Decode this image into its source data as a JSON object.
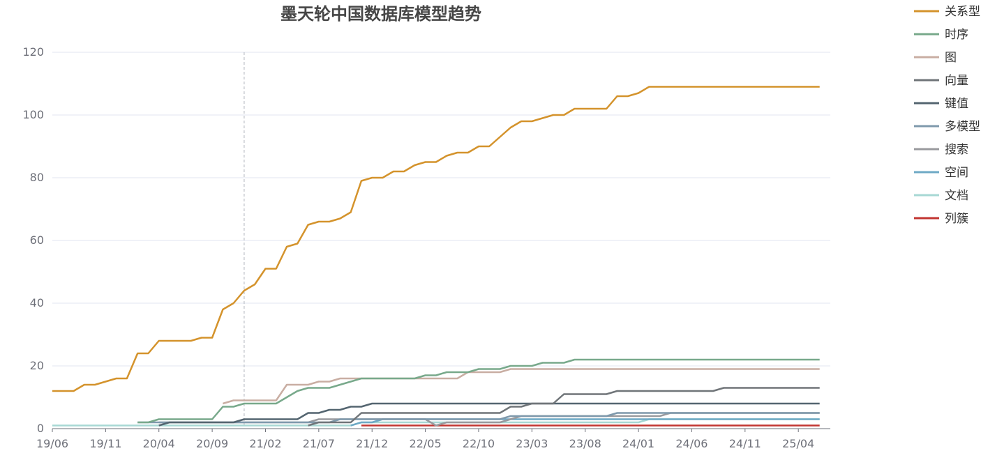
{
  "chart_data": {
    "type": "line",
    "title": "墨天轮中国数据库模型趋势",
    "xlabel": "",
    "ylabel": "",
    "ylim": [
      0,
      120
    ],
    "yticks": [
      0,
      20,
      40,
      60,
      80,
      100,
      120
    ],
    "x_start": "19/06",
    "x_end": "25/07",
    "x_tick_labels": [
      "19/06",
      "19/11",
      "20/04",
      "20/09",
      "21/02",
      "21/07",
      "21/12",
      "22/05",
      "22/10",
      "23/03",
      "23/08",
      "24/01",
      "24/06",
      "24/11",
      "25/04"
    ],
    "cursor_x": "20/12",
    "grid": true,
    "legend_position": "top-right",
    "series": [
      {
        "name": "关系型",
        "color": "#d4932c",
        "points": [
          [
            "19/06",
            12
          ],
          [
            "19/08",
            12
          ],
          [
            "19/09",
            14
          ],
          [
            "19/10",
            14
          ],
          [
            "19/12",
            16
          ],
          [
            "20/01",
            16
          ],
          [
            "20/02",
            24
          ],
          [
            "20/03",
            24
          ],
          [
            "20/04",
            28
          ],
          [
            "20/07",
            28
          ],
          [
            "20/08",
            29
          ],
          [
            "20/09",
            29
          ],
          [
            "20/10",
            38
          ],
          [
            "20/11",
            40
          ],
          [
            "20/12",
            44
          ],
          [
            "21/01",
            46
          ],
          [
            "21/02",
            51
          ],
          [
            "21/03",
            51
          ],
          [
            "21/04",
            58
          ],
          [
            "21/05",
            59
          ],
          [
            "21/06",
            65
          ],
          [
            "21/07",
            66
          ],
          [
            "21/08",
            66
          ],
          [
            "21/09",
            67
          ],
          [
            "21/10",
            69
          ],
          [
            "21/11",
            79
          ],
          [
            "21/12",
            80
          ],
          [
            "22/01",
            80
          ],
          [
            "22/02",
            82
          ],
          [
            "22/03",
            82
          ],
          [
            "22/04",
            84
          ],
          [
            "22/05",
            85
          ],
          [
            "22/06",
            85
          ],
          [
            "22/07",
            87
          ],
          [
            "22/08",
            88
          ],
          [
            "22/09",
            88
          ],
          [
            "22/10",
            90
          ],
          [
            "22/11",
            90
          ],
          [
            "22/12",
            93
          ],
          [
            "23/01",
            96
          ],
          [
            "23/02",
            98
          ],
          [
            "23/03",
            98
          ],
          [
            "23/04",
            99
          ],
          [
            "23/05",
            100
          ],
          [
            "23/06",
            100
          ],
          [
            "23/07",
            102
          ],
          [
            "23/10",
            102
          ],
          [
            "23/11",
            106
          ],
          [
            "23/12",
            106
          ],
          [
            "24/01",
            107
          ],
          [
            "24/02",
            109
          ],
          [
            "25/06",
            109
          ]
        ]
      },
      {
        "name": "时序",
        "color": "#78a98b",
        "points": [
          [
            "20/02",
            2
          ],
          [
            "20/03",
            2
          ],
          [
            "20/04",
            3
          ],
          [
            "20/09",
            3
          ],
          [
            "20/10",
            7
          ],
          [
            "20/11",
            7
          ],
          [
            "20/12",
            8
          ],
          [
            "21/03",
            8
          ],
          [
            "21/04",
            10
          ],
          [
            "21/05",
            12
          ],
          [
            "21/06",
            13
          ],
          [
            "21/08",
            13
          ],
          [
            "21/09",
            14
          ],
          [
            "21/10",
            15
          ],
          [
            "21/11",
            16
          ],
          [
            "22/04",
            16
          ],
          [
            "22/05",
            17
          ],
          [
            "22/06",
            17
          ],
          [
            "22/07",
            18
          ],
          [
            "22/09",
            18
          ],
          [
            "22/10",
            19
          ],
          [
            "22/12",
            19
          ],
          [
            "23/01",
            20
          ],
          [
            "23/03",
            20
          ],
          [
            "23/04",
            21
          ],
          [
            "23/06",
            21
          ],
          [
            "23/07",
            22
          ],
          [
            "25/06",
            22
          ]
        ]
      },
      {
        "name": "图",
        "color": "#c9aea3",
        "points": [
          [
            "20/10",
            8
          ],
          [
            "20/11",
            9
          ],
          [
            "21/03",
            9
          ],
          [
            "21/04",
            14
          ],
          [
            "21/06",
            14
          ],
          [
            "21/07",
            15
          ],
          [
            "21/08",
            15
          ],
          [
            "21/09",
            16
          ],
          [
            "22/08",
            16
          ],
          [
            "22/09",
            18
          ],
          [
            "22/12",
            18
          ],
          [
            "23/01",
            19
          ],
          [
            "25/06",
            19
          ]
        ]
      },
      {
        "name": "向量",
        "color": "#707579",
        "points": [
          [
            "21/06",
            1
          ],
          [
            "21/07",
            2
          ],
          [
            "21/10",
            2
          ],
          [
            "21/11",
            5
          ],
          [
            "22/12",
            5
          ],
          [
            "23/01",
            7
          ],
          [
            "23/02",
            7
          ],
          [
            "23/03",
            8
          ],
          [
            "23/05",
            8
          ],
          [
            "23/06",
            11
          ],
          [
            "23/10",
            11
          ],
          [
            "23/11",
            12
          ],
          [
            "24/08",
            12
          ],
          [
            "24/09",
            13
          ],
          [
            "25/06",
            13
          ]
        ]
      },
      {
        "name": "键值",
        "color": "#546570",
        "points": [
          [
            "20/04",
            1
          ],
          [
            "20/05",
            2
          ],
          [
            "20/11",
            2
          ],
          [
            "20/12",
            3
          ],
          [
            "21/05",
            3
          ],
          [
            "21/06",
            5
          ],
          [
            "21/07",
            5
          ],
          [
            "21/08",
            6
          ],
          [
            "21/09",
            6
          ],
          [
            "21/10",
            7
          ],
          [
            "21/11",
            7
          ],
          [
            "21/12",
            8
          ],
          [
            "25/06",
            8
          ]
        ]
      },
      {
        "name": "多模型",
        "color": "#7f99ac",
        "points": [
          [
            "20/02",
            2
          ],
          [
            "21/08",
            2
          ],
          [
            "21/09",
            3
          ],
          [
            "22/12",
            3
          ],
          [
            "23/01",
            4
          ],
          [
            "23/10",
            4
          ],
          [
            "23/11",
            5
          ],
          [
            "25/06",
            5
          ]
        ]
      },
      {
        "name": "搜索",
        "color": "#999a9e",
        "points": [
          [
            "20/04",
            2
          ],
          [
            "21/06",
            2
          ],
          [
            "21/07",
            3
          ],
          [
            "22/05",
            3
          ],
          [
            "22/06",
            1
          ],
          [
            "22/07",
            2
          ],
          [
            "22/12",
            2
          ],
          [
            "23/01",
            3
          ],
          [
            "23/02",
            4
          ],
          [
            "24/03",
            4
          ],
          [
            "24/04",
            5
          ],
          [
            "25/06",
            5
          ]
        ]
      },
      {
        "name": "空间",
        "color": "#6ea9c5",
        "points": [
          [
            "21/10",
            1
          ],
          [
            "21/11",
            2
          ],
          [
            "21/12",
            2
          ],
          [
            "22/01",
            3
          ],
          [
            "25/06",
            3
          ]
        ]
      },
      {
        "name": "文档",
        "color": "#a7d8d4",
        "points": [
          [
            "19/06",
            1
          ],
          [
            "21/10",
            1
          ],
          [
            "21/11",
            2
          ],
          [
            "24/01",
            2
          ],
          [
            "24/02",
            3
          ],
          [
            "25/06",
            3
          ]
        ]
      },
      {
        "name": "列簇",
        "color": "#c23531",
        "points": [
          [
            "21/11",
            1
          ],
          [
            "25/06",
            1
          ]
        ]
      }
    ]
  }
}
